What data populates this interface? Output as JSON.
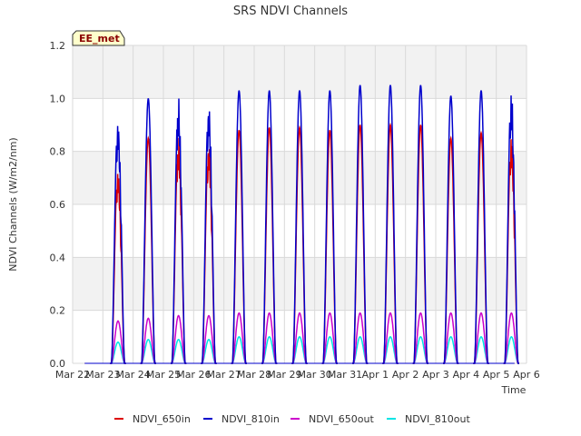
{
  "chart_data": {
    "type": "line",
    "title": "SRS NDVI Channels",
    "xlabel": "Time",
    "ylabel": "NDVI Channels (W/m2/nm)",
    "badge": "EE_met",
    "x_tick_labels": [
      "Mar 22",
      "Mar 23",
      "Mar 24",
      "Mar 25",
      "Mar 26",
      "Mar 27",
      "Mar 28",
      "Mar 29",
      "Mar 30",
      "Mar 31",
      "Apr 1",
      "Apr 2",
      "Apr 3",
      "Apr 4",
      "Apr 5",
      "Apr 6"
    ],
    "xlim": [
      0,
      15
    ],
    "ylim": [
      0.0,
      1.2
    ],
    "y_ticks": [
      0.0,
      0.2,
      0.4,
      0.6,
      0.8,
      1.0,
      1.2
    ],
    "y_tick_labels": [
      "0.0",
      "0.2",
      "0.4",
      "0.6",
      "0.8",
      "1.0",
      "1.2"
    ],
    "grid": true,
    "legend_position": "bottom",
    "days": [
      "Mar 23",
      "Mar 24",
      "Mar 25",
      "Mar 26",
      "Mar 27",
      "Mar 28",
      "Mar 29",
      "Mar 30",
      "Mar 31",
      "Apr 1",
      "Apr 2",
      "Apr 3",
      "Apr 4",
      "Apr 5"
    ],
    "series": [
      {
        "name": "NDVI_650in",
        "color": "#dd0000",
        "daily_peaks": [
          0.75,
          0.85,
          0.86,
          0.85,
          0.88,
          0.89,
          0.89,
          0.88,
          0.9,
          0.9,
          0.9,
          0.85,
          0.87,
          0.87
        ]
      },
      {
        "name": "NDVI_810in",
        "color": "#0000cc",
        "daily_peaks": [
          0.94,
          1.0,
          1.01,
          1.0,
          1.03,
          1.03,
          1.03,
          1.03,
          1.05,
          1.05,
          1.05,
          1.01,
          1.03,
          1.04
        ]
      },
      {
        "name": "NDVI_650out",
        "color": "#cc00cc",
        "daily_peaks": [
          0.16,
          0.17,
          0.18,
          0.18,
          0.19,
          0.19,
          0.19,
          0.19,
          0.19,
          0.19,
          0.19,
          0.19,
          0.19,
          0.19
        ]
      },
      {
        "name": "NDVI_810out",
        "color": "#00e5e5",
        "daily_peaks": [
          0.08,
          0.09,
          0.09,
          0.09,
          0.1,
          0.1,
          0.1,
          0.1,
          0.1,
          0.1,
          0.1,
          0.1,
          0.1,
          0.1
        ]
      }
    ]
  }
}
